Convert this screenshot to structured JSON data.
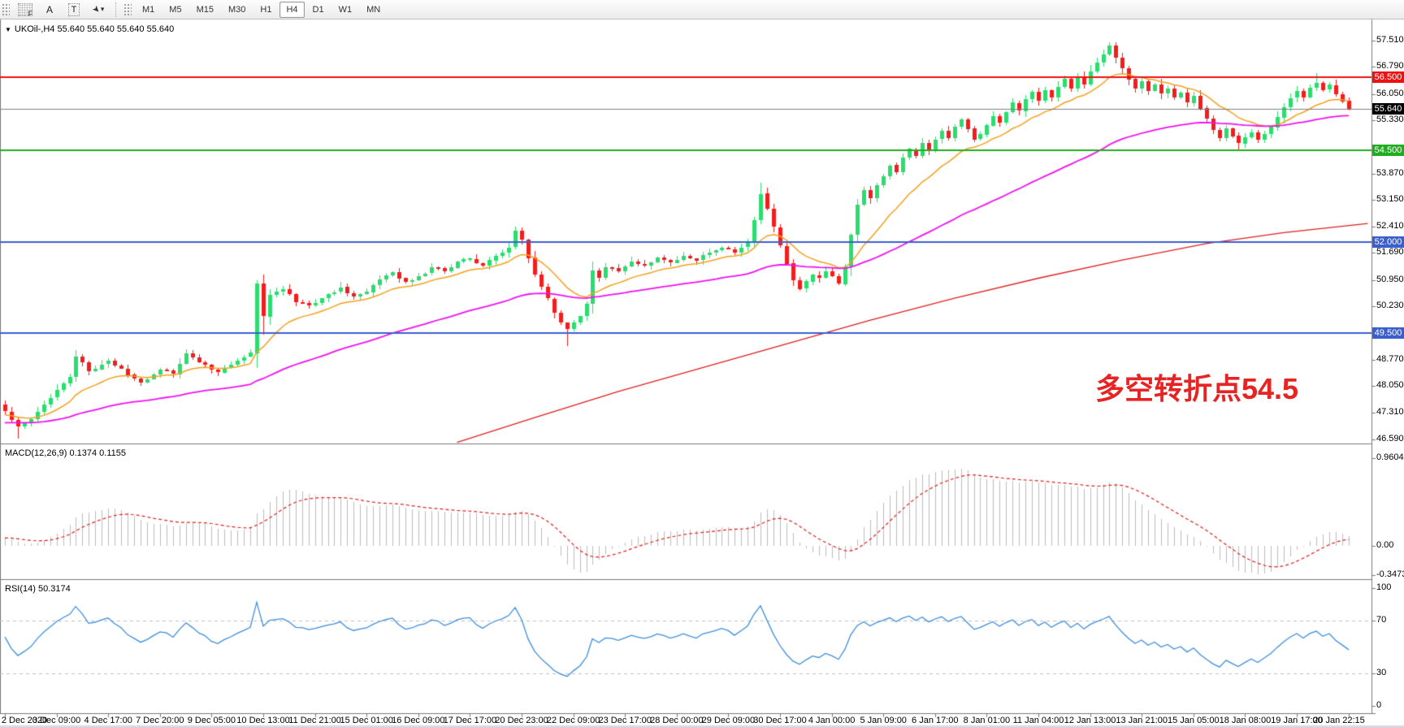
{
  "toolbar": {
    "tools": [
      {
        "name": "pattern-grid-icon",
        "glyph": "F"
      },
      {
        "name": "text-tool-icon",
        "glyph": "A"
      },
      {
        "name": "text-label-tool-icon",
        "glyph": "T"
      },
      {
        "name": "cursor-tool-icon",
        "glyph": "➤"
      },
      {
        "name": "chevron-down-icon",
        "glyph": "▾"
      }
    ],
    "timeframes": [
      "M1",
      "M5",
      "M15",
      "M30",
      "H1",
      "H4",
      "D1",
      "W1",
      "MN"
    ],
    "active_timeframe": "H4"
  },
  "chart": {
    "title": "UKOil-,H4  55.640 55.640 55.640 55.640",
    "dropdown_glyph": "▼",
    "macd_label": "MACD(12,26,9) 0.1374 0.1155",
    "rsi_label": "RSI(14) 50.3174",
    "annotation": {
      "text": "多空转折点54.5",
      "color": "#e62424"
    }
  },
  "chart_data": {
    "type": "candlestick",
    "symbol": "UKOil-",
    "timeframe": "H4",
    "ohlc_display": "55.640 55.640 55.640 55.640",
    "current_price": 55.64,
    "colors": {
      "bull": "#2bdc6e",
      "bear": "#f21d1d",
      "ma_fast_orange": "#f5a11e",
      "ma_mid_magenta": "#f012f0",
      "ma_slow_red": "#e02020",
      "macd_hist": "#bdbdbd",
      "macd_signal": "#e02020",
      "rsi_line": "#3e8ede",
      "level_red": "#ee1111",
      "level_green": "#1fae1f",
      "level_blue": "#3c5fd0",
      "current_line": "#808080",
      "badge_black": "#000000"
    },
    "price_axis": {
      "min": 46.4,
      "max": 57.55,
      "ticks": [
        57.51,
        56.79,
        56.05,
        55.33,
        53.87,
        53.15,
        52.41,
        51.69,
        50.95,
        50.23,
        48.77,
        48.05,
        47.31,
        46.59
      ]
    },
    "hlines": [
      {
        "price": 56.5,
        "label": "56.500",
        "style": "red",
        "width": 2
      },
      {
        "price": 55.64,
        "label": "55.640",
        "style": "current",
        "width": 1
      },
      {
        "price": 54.5,
        "label": "54.500",
        "style": "green",
        "width": 2
      },
      {
        "price": 52.0,
        "label": "52.000",
        "style": "blue",
        "width": 2
      },
      {
        "price": 49.5,
        "label": "49.500",
        "style": "blue",
        "width": 2
      }
    ],
    "macd": {
      "label": "MACD(12,26,9)",
      "main_value": "0.1374",
      "signal_value": "0.1155",
      "axis_ticks": [
        "0.9604",
        "0.00",
        "-0.3473"
      ],
      "tick_values": [
        0.9604,
        0,
        -0.3473
      ]
    },
    "rsi": {
      "label": "RSI(14)",
      "value": "50.3174",
      "axis_ticks": [
        100,
        70,
        30,
        0
      ],
      "levels": [
        70,
        30
      ]
    },
    "time_labels": [
      "2 Dec 2020",
      "3 Dec 09:00",
      "4 Dec 17:00",
      "7 Dec 20:00",
      "9 Dec 05:00",
      "10 Dec 13:00",
      "11 Dec 21:00",
      "15 Dec 01:00",
      "16 Dec 09:00",
      "17 Dec 17:00",
      "20 Dec 23:00",
      "22 Dec 09:00",
      "23 Dec 17:00",
      "28 Dec 00:00",
      "29 Dec 09:00",
      "30 Dec 17:00",
      "4 Jan 00:00",
      "5 Jan 09:00",
      "6 Jan 17:00",
      "8 Jan 01:00",
      "11 Jan 04:00",
      "12 Jan 13:00",
      "13 Jan 21:00",
      "15 Jan 05:00",
      "18 Jan 08:00",
      "19 Jan 17:00",
      "20 Jan 22:15"
    ],
    "close_keyframes": [
      [
        0,
        47.35
      ],
      [
        2,
        46.95
      ],
      [
        4,
        47.15
      ],
      [
        6,
        47.55
      ],
      [
        8,
        47.95
      ],
      [
        10,
        48.3
      ],
      [
        11,
        48.85
      ],
      [
        13,
        48.45
      ],
      [
        16,
        48.75
      ],
      [
        19,
        48.35
      ],
      [
        21,
        48.15
      ],
      [
        24,
        48.5
      ],
      [
        26,
        48.38
      ],
      [
        28,
        48.92
      ],
      [
        30,
        48.7
      ],
      [
        33,
        48.42
      ],
      [
        36,
        48.75
      ],
      [
        38,
        48.95
      ],
      [
        39,
        50.85
      ],
      [
        40,
        49.95
      ],
      [
        41,
        50.55
      ],
      [
        43,
        50.7
      ],
      [
        45,
        50.35
      ],
      [
        47,
        50.25
      ],
      [
        49,
        50.45
      ],
      [
        52,
        50.75
      ],
      [
        54,
        50.5
      ],
      [
        56,
        50.62
      ],
      [
        58,
        50.95
      ],
      [
        60,
        51.15
      ],
      [
        62,
        50.9
      ],
      [
        64,
        51.05
      ],
      [
        66,
        51.3
      ],
      [
        68,
        51.2
      ],
      [
        70,
        51.45
      ],
      [
        72,
        51.55
      ],
      [
        74,
        51.35
      ],
      [
        76,
        51.6
      ],
      [
        78,
        51.85
      ],
      [
        79,
        52.3
      ],
      [
        80,
        52.05
      ],
      [
        81,
        51.55
      ],
      [
        82,
        51.1
      ],
      [
        83,
        50.75
      ],
      [
        84,
        50.45
      ],
      [
        85,
        50.05
      ],
      [
        86,
        49.8
      ],
      [
        87,
        49.6
      ],
      [
        88,
        49.78
      ],
      [
        89,
        49.95
      ],
      [
        90,
        50.3
      ],
      [
        91,
        51.2
      ],
      [
        92,
        51.0
      ],
      [
        93,
        51.3
      ],
      [
        95,
        51.2
      ],
      [
        97,
        51.45
      ],
      [
        99,
        51.35
      ],
      [
        101,
        51.55
      ],
      [
        103,
        51.42
      ],
      [
        105,
        51.6
      ],
      [
        107,
        51.5
      ],
      [
        109,
        51.7
      ],
      [
        111,
        51.85
      ],
      [
        113,
        51.7
      ],
      [
        115,
        52.0
      ],
      [
        116,
        52.6
      ],
      [
        117,
        53.3
      ],
      [
        118,
        52.9
      ],
      [
        119,
        52.4
      ],
      [
        120,
        51.9
      ],
      [
        121,
        51.4
      ],
      [
        122,
        50.95
      ],
      [
        123,
        50.7
      ],
      [
        124,
        50.9
      ],
      [
        125,
        51.1
      ],
      [
        126,
        51.0
      ],
      [
        127,
        51.2
      ],
      [
        128,
        51.05
      ],
      [
        129,
        50.85
      ],
      [
        130,
        51.3
      ],
      [
        131,
        52.2
      ],
      [
        132,
        53.0
      ],
      [
        133,
        53.4
      ],
      [
        134,
        53.2
      ],
      [
        135,
        53.55
      ],
      [
        136,
        53.8
      ],
      [
        137,
        54.1
      ],
      [
        138,
        53.9
      ],
      [
        139,
        54.3
      ],
      [
        140,
        54.55
      ],
      [
        141,
        54.35
      ],
      [
        142,
        54.7
      ],
      [
        143,
        54.5
      ],
      [
        144,
        54.8
      ],
      [
        145,
        55.05
      ],
      [
        146,
        54.85
      ],
      [
        147,
        55.15
      ],
      [
        148,
        55.35
      ],
      [
        149,
        55.1
      ],
      [
        150,
        54.8
      ],
      [
        151,
        54.95
      ],
      [
        152,
        55.2
      ],
      [
        153,
        55.45
      ],
      [
        154,
        55.25
      ],
      [
        155,
        55.55
      ],
      [
        156,
        55.8
      ],
      [
        157,
        55.6
      ],
      [
        158,
        55.9
      ],
      [
        159,
        56.1
      ],
      [
        160,
        55.85
      ],
      [
        161,
        56.15
      ],
      [
        162,
        55.95
      ],
      [
        163,
        56.25
      ],
      [
        164,
        56.45
      ],
      [
        165,
        56.2
      ],
      [
        166,
        56.55
      ],
      [
        167,
        56.3
      ],
      [
        168,
        56.65
      ],
      [
        169,
        56.9
      ],
      [
        170,
        57.15
      ],
      [
        171,
        57.38
      ],
      [
        172,
        57.05
      ],
      [
        173,
        56.75
      ],
      [
        174,
        56.45
      ],
      [
        175,
        56.2
      ],
      [
        176,
        56.4
      ],
      [
        177,
        56.15
      ],
      [
        178,
        56.3
      ],
      [
        179,
        56.05
      ],
      [
        180,
        56.2
      ],
      [
        181,
        55.95
      ],
      [
        182,
        56.1
      ],
      [
        183,
        55.8
      ],
      [
        184,
        56.0
      ],
      [
        185,
        55.65
      ],
      [
        186,
        55.35
      ],
      [
        187,
        55.05
      ],
      [
        188,
        54.85
      ],
      [
        189,
        55.1
      ],
      [
        190,
        54.9
      ],
      [
        191,
        54.7
      ],
      [
        192,
        54.85
      ],
      [
        193,
        55.0
      ],
      [
        194,
        54.78
      ],
      [
        195,
        54.95
      ],
      [
        196,
        55.15
      ],
      [
        197,
        55.4
      ],
      [
        198,
        55.7
      ],
      [
        199,
        55.95
      ],
      [
        200,
        56.15
      ],
      [
        201,
        55.95
      ],
      [
        202,
        56.2
      ],
      [
        203,
        56.35
      ],
      [
        204,
        56.15
      ],
      [
        205,
        56.3
      ],
      [
        206,
        56.05
      ],
      [
        207,
        55.85
      ],
      [
        208,
        55.64
      ]
    ],
    "wick_overrides": [
      [
        2,
        null,
        46.6
      ],
      [
        11,
        49.02,
        null
      ],
      [
        39,
        50.95,
        null
      ],
      [
        40,
        null,
        49.46
      ],
      [
        79,
        52.42,
        null
      ],
      [
        87,
        null,
        49.15
      ],
      [
        117,
        53.62,
        null
      ],
      [
        171,
        57.46,
        null
      ],
      [
        191,
        null,
        54.53
      ],
      [
        203,
        56.62,
        null
      ]
    ],
    "slow_ma_points": [
      [
        70,
        46.5
      ],
      [
        82,
        47.18
      ],
      [
        95,
        47.9
      ],
      [
        108,
        48.55
      ],
      [
        121,
        49.2
      ],
      [
        134,
        49.85
      ],
      [
        147,
        50.45
      ],
      [
        160,
        51.0
      ],
      [
        173,
        51.5
      ],
      [
        186,
        51.95
      ],
      [
        198,
        52.25
      ],
      [
        211,
        52.5
      ]
    ]
  }
}
